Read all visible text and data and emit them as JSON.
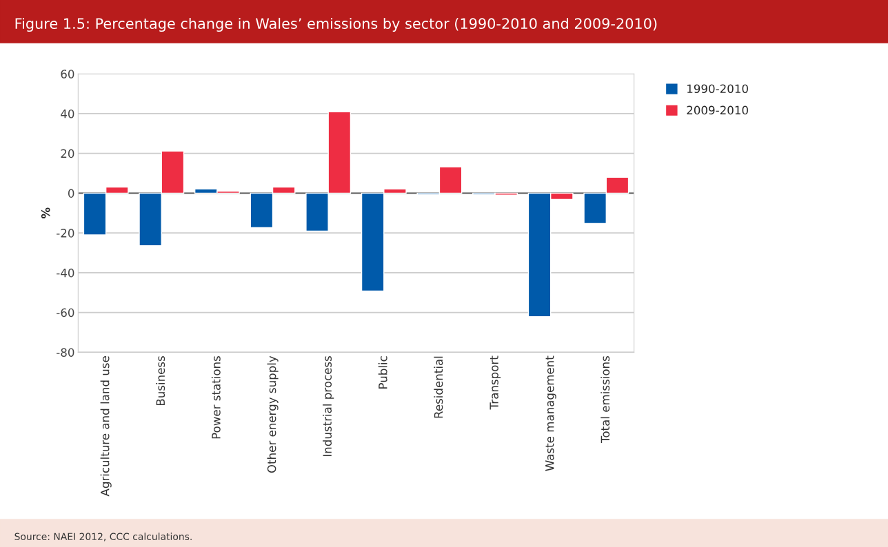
{
  "chart_data": {
    "type": "bar",
    "title": "Figure 1.5: Percentage change in Wales’ emissions by sector (1990-2010 and 2009-2010)",
    "ylabel": "%",
    "categories": [
      "Agriculture and land use",
      "Business",
      "Power stations",
      "Other energy supply",
      "Industrial process",
      "Public",
      "Residential",
      "Transport",
      "Waste management",
      "Total emissions"
    ],
    "series": [
      {
        "name": "1990-2010",
        "color": "#005aaa",
        "values": [
          -21.0,
          -26.4,
          2.1,
          -17.3,
          -19.1,
          -49.2,
          -0.7,
          -0.7,
          -62.1,
          -15.3
        ]
      },
      {
        "name": "2009-2010",
        "color": "#ee2d43",
        "values": [
          3.1,
          21.2,
          1.0,
          3.1,
          40.9,
          2.1,
          13.2,
          -1.0,
          -3.1,
          8.0
        ]
      }
    ],
    "ylim": [
      -80,
      60
    ],
    "yticks": [
      -80,
      -60,
      -40,
      -20,
      0,
      20,
      40,
      60
    ],
    "grid": "y",
    "legend": "top right",
    "annotations": [
      "Source: NAEI 2012, CCC calculations."
    ]
  }
}
